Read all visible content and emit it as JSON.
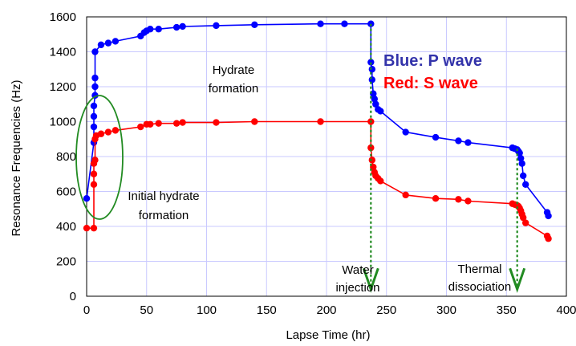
{
  "chart_data": {
    "type": "line",
    "xlabel": "Lapse Time (hr)",
    "ylabel": "Resonance Frequencies (Hz)",
    "xlim": [
      0,
      400
    ],
    "ylim": [
      0,
      1600
    ],
    "xticks": [
      0,
      50,
      100,
      150,
      200,
      250,
      300,
      350,
      400
    ],
    "yticks": [
      0,
      200,
      400,
      600,
      800,
      1000,
      1200,
      1400,
      1600
    ],
    "grid": true,
    "legend": [
      {
        "text": "Blue: P wave",
        "color": "#3333aa"
      },
      {
        "text": "Red: S wave",
        "color": "#ff0000"
      }
    ],
    "series": [
      {
        "color": "#0000ff",
        "x": [
          0,
          6,
          6,
          6,
          6,
          7,
          7,
          7,
          7,
          12,
          18,
          24,
          45,
          48,
          50,
          53,
          60,
          75,
          80,
          108,
          140,
          195,
          215,
          237,
          237,
          238,
          238,
          239,
          240,
          241,
          243,
          245,
          266,
          291,
          310,
          318,
          355,
          357,
          359,
          360,
          361,
          362,
          363,
          364,
          366,
          384,
          385
        ],
        "y": [
          560,
          880,
          970,
          1030,
          1090,
          1150,
          1200,
          1250,
          1400,
          1440,
          1450,
          1460,
          1490,
          1510,
          1520,
          1530,
          1530,
          1540,
          1545,
          1550,
          1555,
          1560,
          1560,
          1560,
          1340,
          1300,
          1240,
          1160,
          1130,
          1100,
          1070,
          1060,
          940,
          910,
          890,
          880,
          850,
          845,
          840,
          830,
          820,
          790,
          760,
          690,
          640,
          480,
          460
        ]
      },
      {
        "color": "#ff0000",
        "x": [
          0,
          6,
          6,
          6,
          6,
          7,
          7,
          8,
          12,
          18,
          24,
          45,
          50,
          53,
          60,
          75,
          80,
          108,
          140,
          195,
          237,
          237,
          238,
          239,
          240,
          241,
          243,
          245,
          266,
          291,
          310,
          318,
          355,
          357,
          359,
          360,
          361,
          362,
          363,
          364,
          366,
          384,
          385
        ],
        "y": [
          390,
          390,
          640,
          700,
          760,
          780,
          900,
          920,
          930,
          940,
          950,
          970,
          985,
          985,
          990,
          990,
          995,
          995,
          1000,
          1000,
          1000,
          850,
          780,
          740,
          710,
          690,
          675,
          660,
          580,
          560,
          555,
          545,
          530,
          525,
          520,
          515,
          505,
          490,
          470,
          450,
          420,
          345,
          330
        ]
      }
    ],
    "annotations": [
      {
        "lines": [
          "Hydrate",
          "formation"
        ]
      },
      {
        "lines": [
          "Initial hydrate",
          "formation"
        ]
      },
      {
        "lines": [
          "Water",
          "injection"
        ]
      },
      {
        "lines": [
          "Thermal",
          "dissociation"
        ]
      }
    ],
    "arrows": [
      {
        "x": 237,
        "from_y": 1560,
        "to_y": 40
      },
      {
        "x": 359,
        "from_y": 845,
        "to_y": 40
      }
    ],
    "arrow_color": "#228b22",
    "ellipse_color": "#228b22",
    "grid_color": "#c9c9ff"
  }
}
